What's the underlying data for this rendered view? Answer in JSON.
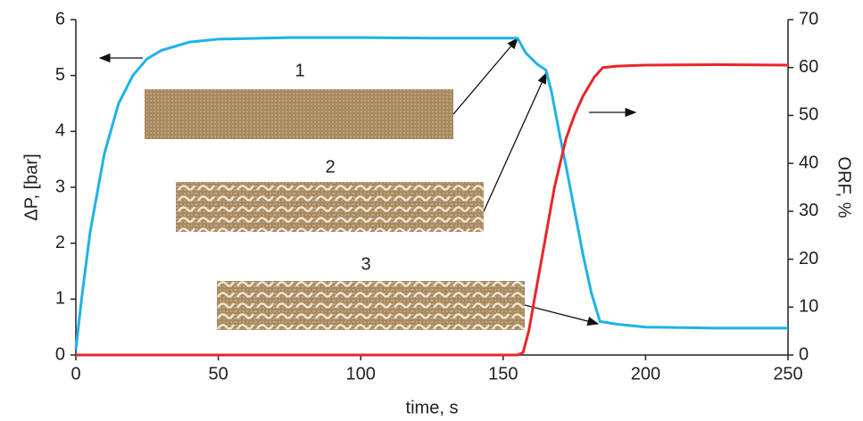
{
  "chart_data": {
    "type": "line",
    "x_label": "time, s",
    "y_label": "ΔP, [bar]",
    "y2_label": "ORF, %",
    "annotations": [
      "1",
      "2",
      "3"
    ],
    "xlim": [
      0,
      250
    ],
    "xticks": [
      0,
      50,
      100,
      150,
      200,
      250
    ],
    "ylim": [
      0,
      6
    ],
    "yticks": [
      0,
      1,
      2,
      3,
      4,
      5,
      6
    ],
    "y2lim": [
      0,
      70
    ],
    "y2ticks": [
      0,
      10,
      20,
      30,
      40,
      50,
      60,
      70
    ],
    "series": [
      {
        "color": "#1fb2e8",
        "x": [
          0,
          2,
          5,
          10,
          15,
          20,
          25,
          30,
          40,
          50,
          75,
          100,
          125,
          155,
          158,
          162,
          165,
          167,
          170,
          172,
          175,
          178,
          181,
          184,
          190,
          200,
          225,
          250
        ],
        "values": [
          0.1,
          1.0,
          2.2,
          3.6,
          4.5,
          5.0,
          5.3,
          5.45,
          5.6,
          5.65,
          5.68,
          5.68,
          5.67,
          5.67,
          5.4,
          5.2,
          5.1,
          4.7,
          3.9,
          3.4,
          2.6,
          1.8,
          1.1,
          0.6,
          0.55,
          0.5,
          0.48,
          0.48
        ]
      },
      {
        "color": "#e8262b",
        "axis": "y2",
        "x": [
          0,
          155,
          157,
          159,
          162,
          165,
          168,
          172,
          175,
          178,
          182,
          185,
          190,
          200,
          225,
          250
        ],
        "values": [
          0,
          0,
          0.5,
          5,
          15,
          25,
          35,
          45,
          50,
          54,
          58,
          60,
          60.3,
          60.5,
          60.6,
          60.5
        ]
      }
    ]
  }
}
